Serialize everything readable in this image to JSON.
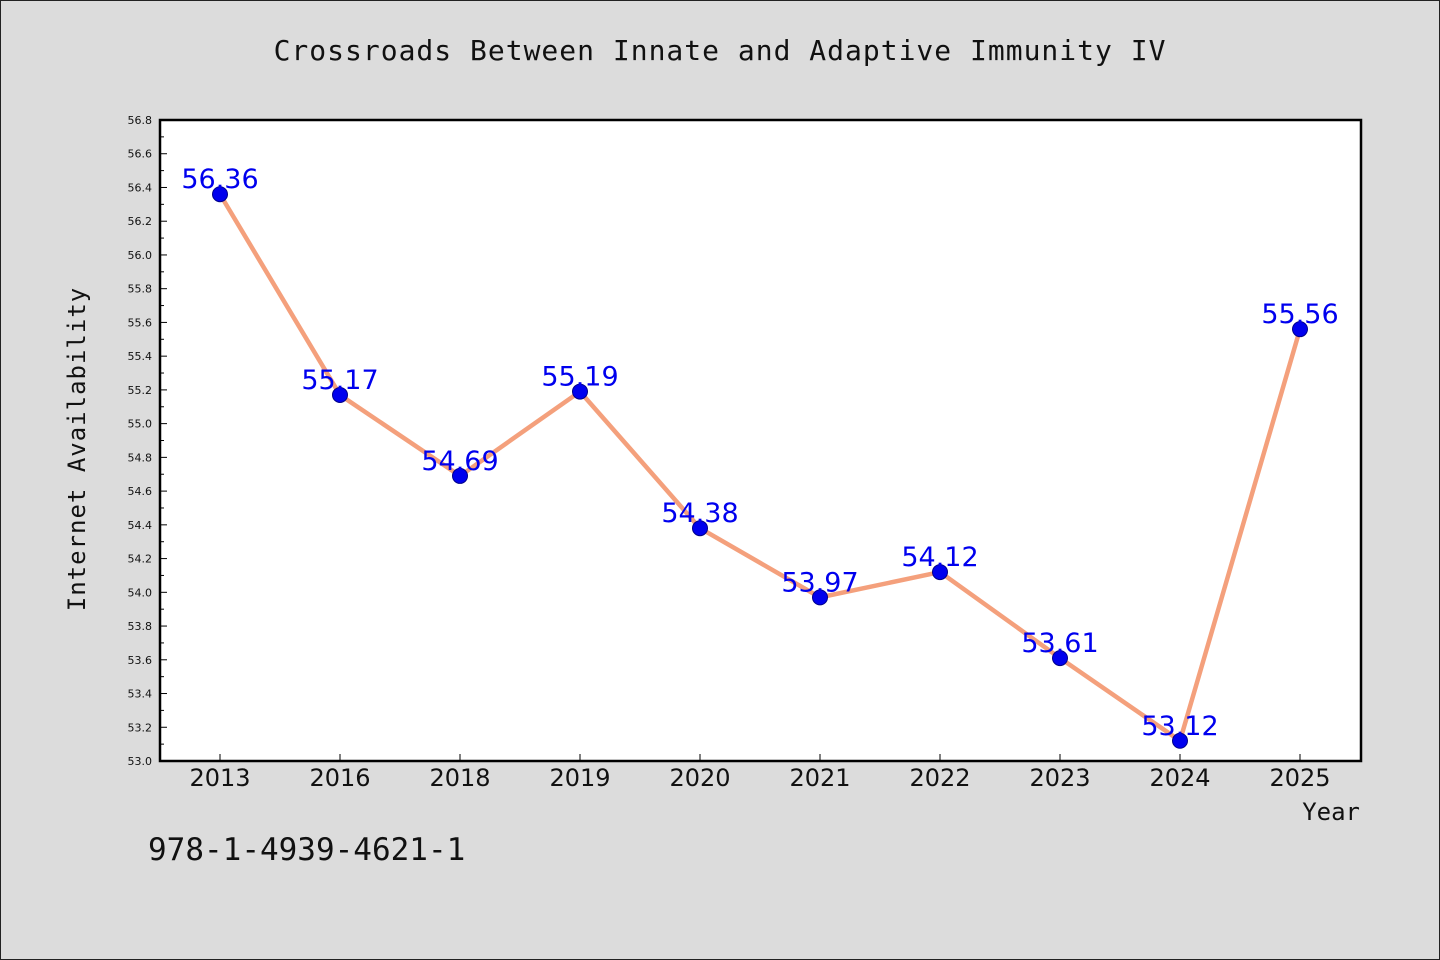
{
  "colors": {
    "background": "#dcdcdc",
    "plot_background": "#ffffff",
    "line": "#f4a07c",
    "marker": "#0000ee",
    "marker_edge": "#00008b",
    "data_label": "#0000ee"
  },
  "footer_code": "978-1-4939-4621-1",
  "chart_data": {
    "type": "line",
    "title": "Crossroads Between Innate and Adaptive Immunity IV",
    "xlabel": "Year",
    "ylabel": "Internet Availability",
    "categories": [
      "2013",
      "2016",
      "2018",
      "2019",
      "2020",
      "2021",
      "2022",
      "2023",
      "2024",
      "2025"
    ],
    "values": [
      56.36,
      55.17,
      54.69,
      55.19,
      54.38,
      53.97,
      54.12,
      53.61,
      53.12,
      55.56
    ],
    "data_labels": [
      "56.36",
      "55.17",
      "54.69",
      "55.19",
      "54.38",
      "53.97",
      "54.12",
      "53.61",
      "53.12",
      "55.56"
    ],
    "ylim": [
      53.0,
      56.8
    ],
    "yticks": [
      "53.0",
      "53.2",
      "53.4",
      "53.6",
      "53.8",
      "54.0",
      "54.2",
      "54.4",
      "54.6",
      "54.8",
      "55.0",
      "55.2",
      "55.4",
      "55.6",
      "55.8",
      "56.0",
      "56.2",
      "56.4",
      "56.6",
      "56.8"
    ],
    "grid": false,
    "legend": "none"
  }
}
